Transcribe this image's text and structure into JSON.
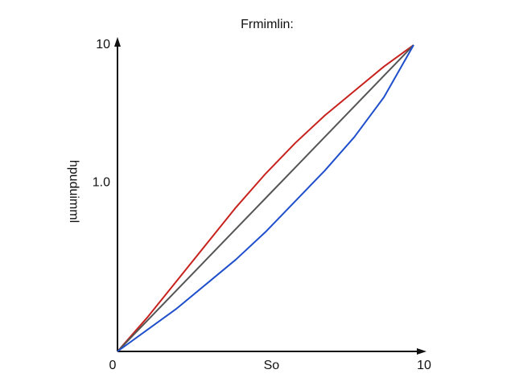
{
  "chart_data": {
    "type": "line",
    "title": "Frmimlin:",
    "y_label": "hpuduimml",
    "x": [
      0,
      1,
      2,
      3,
      4,
      5,
      6,
      7,
      8,
      9,
      10
    ],
    "series": [
      {
        "color": "#c8221e",
        "values": [
          0,
          1.1,
          2.3,
          3.5,
          4.7,
          5.8,
          6.8,
          7.7,
          8.5,
          9.3,
          10
        ]
      },
      {
        "color": "#555555",
        "values": [
          0,
          1,
          2,
          3,
          4,
          5,
          6,
          7,
          8,
          9,
          10
        ]
      },
      {
        "color": "#1f4fcc",
        "values": [
          0,
          0.7,
          1.4,
          2.2,
          3.0,
          3.9,
          4.9,
          5.9,
          7.0,
          8.3,
          10
        ]
      }
    ],
    "xlim": [
      0,
      10
    ],
    "ylim": [
      0,
      10
    ],
    "xticks": [
      0,
      {
        "value": 5.2,
        "label": "So"
      },
      10
    ],
    "yticks": [
      {
        "value": 5.5,
        "label": "1.0"
      },
      10
    ]
  }
}
